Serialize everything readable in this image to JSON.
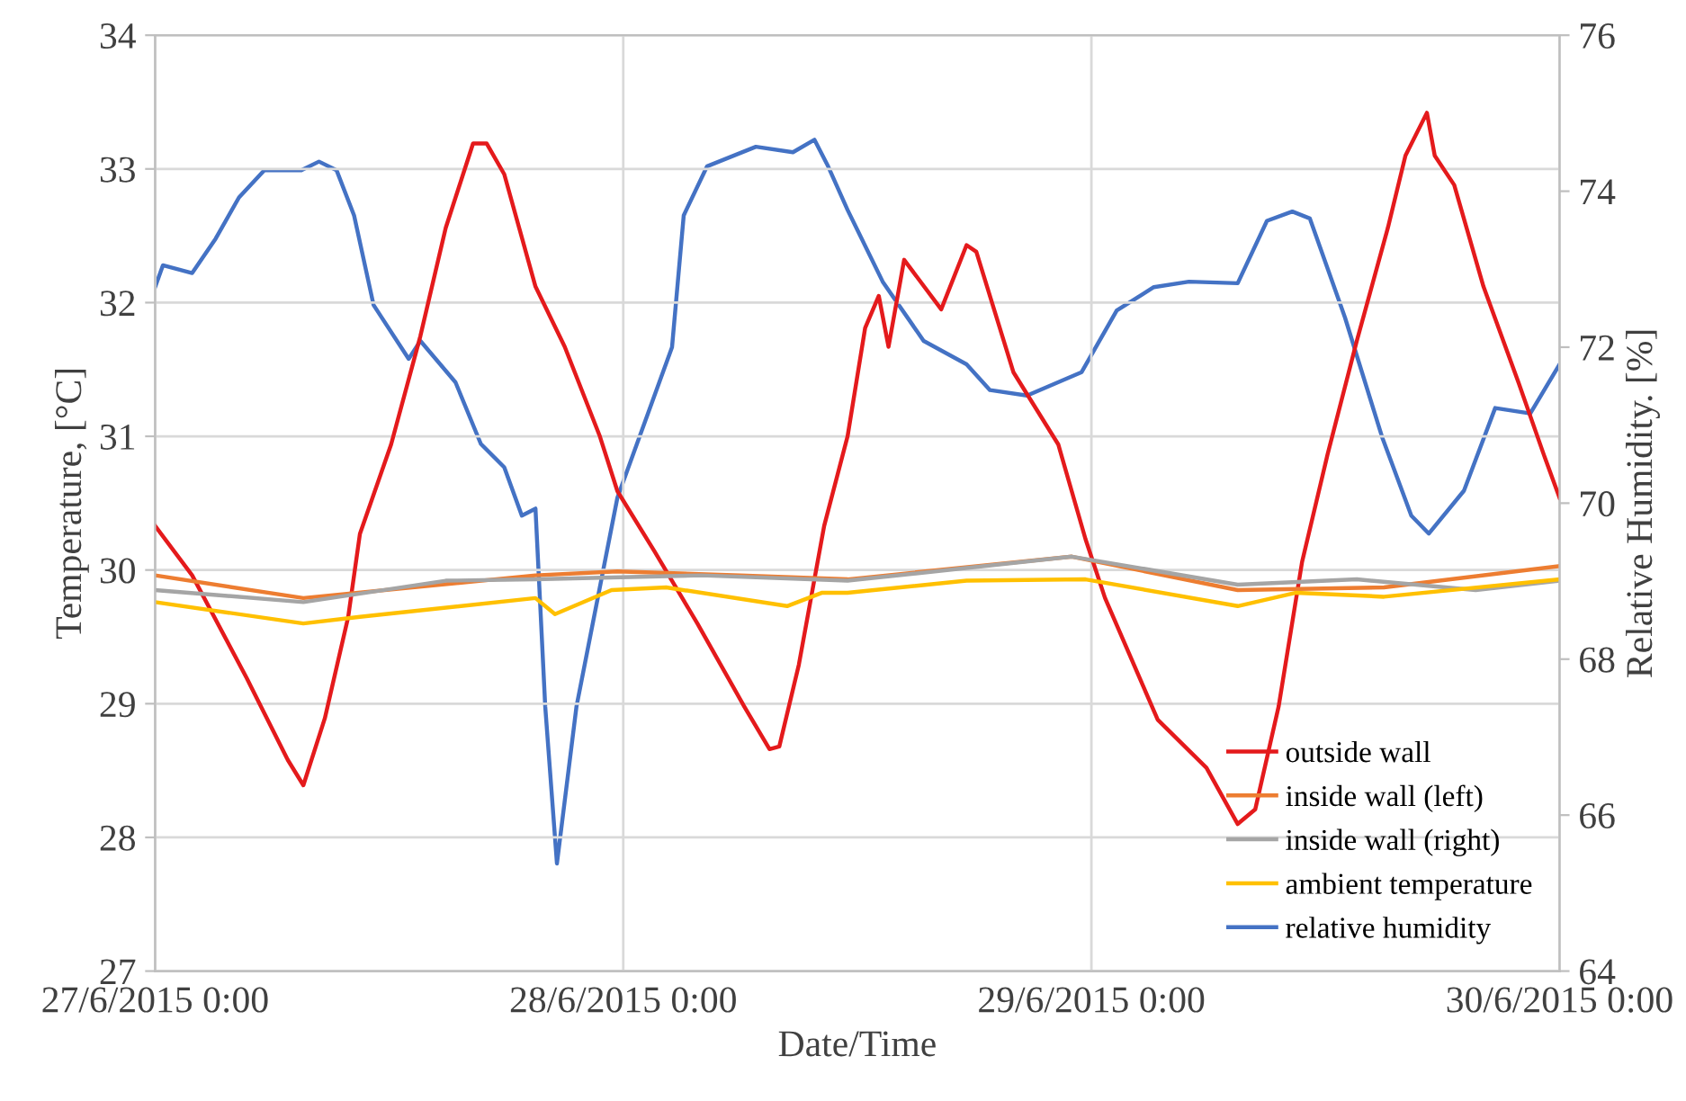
{
  "chart_data": {
    "type": "line",
    "xlabel": "Date/Time",
    "ylabel": "Temperature, [°C]",
    "y2label": "Relative Humidity. [%]",
    "xlim": [
      "2015-06-27T00:00",
      "2015-06-30T00:00"
    ],
    "xticks": [
      {
        "value": "2015-06-27T00:00",
        "label": "27/6/2015 0:00"
      },
      {
        "value": "2015-06-28T00:00",
        "label": "28/6/2015 0:00"
      },
      {
        "value": "2015-06-29T00:00",
        "label": "29/6/2015 0:00"
      },
      {
        "value": "2015-06-30T00:00",
        "label": "30/6/2015 0:00"
      }
    ],
    "ylim": [
      27,
      34
    ],
    "yticks": [
      27,
      28,
      29,
      30,
      31,
      32,
      33,
      34
    ],
    "y2lim": [
      64,
      76
    ],
    "y2ticks": [
      64,
      66,
      68,
      70,
      72,
      74,
      76
    ],
    "grid": true,
    "legend": "bottom right",
    "marker": "none",
    "line_style": "solid",
    "series": [
      {
        "name": "outside wall",
        "color": "#e41a1c",
        "x": [
          "2015-06-27T00:00",
          "2015-06-27T01:54",
          "2015-06-27T04:42",
          "2015-06-27T06:48",
          "2015-06-27T07:36",
          "2015-06-27T08:42",
          "2015-06-27T09:54",
          "2015-06-27T10:30",
          "2015-06-27T12:06",
          "2015-06-27T13:36",
          "2015-06-27T14:54",
          "2015-06-27T16:18",
          "2015-06-27T17:00",
          "2015-06-27T17:54",
          "2015-06-27T19:30",
          "2015-06-27T21:00",
          "2015-06-27T22:48",
          "2015-06-27T23:42",
          "2015-06-28T01:36",
          "2015-06-28T03:48",
          "2015-06-28T06:12",
          "2015-06-28T07:30",
          "2015-06-28T08:00",
          "2015-06-28T09:00",
          "2015-06-28T10:18",
          "2015-06-28T11:30",
          "2015-06-28T12:24",
          "2015-06-28T13:06",
          "2015-06-28T13:36",
          "2015-06-28T14:24",
          "2015-06-28T16:18",
          "2015-06-28T17:36",
          "2015-06-28T18:06",
          "2015-06-28T20:00",
          "2015-06-28T22:18",
          "2015-06-28T23:42",
          "2015-06-29T00:42",
          "2015-06-29T03:24",
          "2015-06-29T05:54",
          "2015-06-29T07:30",
          "2015-06-29T08:24",
          "2015-06-29T09:36",
          "2015-06-29T10:48",
          "2015-06-29T12:06",
          "2015-06-29T13:36",
          "2015-06-29T15:12",
          "2015-06-29T16:06",
          "2015-06-29T17:12",
          "2015-06-29T17:36",
          "2015-06-29T18:36",
          "2015-06-29T20:06",
          "2015-06-29T21:54",
          "2015-06-29T23:12",
          "2015-06-30T00:00"
        ],
        "values": [
          30.33,
          29.96,
          29.19,
          28.58,
          28.39,
          28.89,
          29.65,
          30.27,
          30.94,
          31.75,
          32.56,
          33.19,
          33.19,
          32.96,
          32.12,
          31.67,
          31.0,
          30.59,
          30.14,
          29.6,
          28.98,
          28.66,
          28.68,
          29.29,
          30.33,
          31.0,
          31.81,
          32.05,
          31.67,
          32.32,
          31.95,
          32.43,
          32.38,
          31.48,
          30.94,
          30.23,
          29.79,
          28.88,
          28.52,
          28.1,
          28.21,
          28.98,
          30.06,
          30.86,
          31.71,
          32.56,
          33.1,
          33.42,
          33.1,
          32.88,
          32.12,
          31.4,
          30.86,
          30.54
        ]
      },
      {
        "name": "inside wall (left)",
        "color": "#ed7d31",
        "x": [
          "2015-06-27T00:00",
          "2015-06-27T07:36",
          "2015-06-27T19:30",
          "2015-06-27T23:42",
          "2015-06-28T06:00",
          "2015-06-28T11:30",
          "2015-06-28T23:00",
          "2015-06-29T07:30",
          "2015-06-29T15:00",
          "2015-06-30T00:00"
        ],
        "values": [
          29.96,
          29.79,
          29.96,
          29.99,
          29.96,
          29.93,
          30.1,
          29.85,
          29.87,
          30.03
        ]
      },
      {
        "name": "inside wall (right)",
        "color": "#a5a5a5",
        "x": [
          "2015-06-27T00:00",
          "2015-06-27T07:36",
          "2015-06-27T14:54",
          "2015-06-27T19:30",
          "2015-06-28T04:00",
          "2015-06-28T11:30",
          "2015-06-28T23:00",
          "2015-06-29T07:30",
          "2015-06-29T13:36",
          "2015-06-29T19:42",
          "2015-06-30T00:00"
        ],
        "values": [
          29.85,
          29.76,
          29.92,
          29.93,
          29.96,
          29.92,
          30.1,
          29.89,
          29.93,
          29.85,
          29.92
        ]
      },
      {
        "name": "ambient temperature",
        "color": "#ffc000",
        "x": [
          "2015-06-27T00:00",
          "2015-06-27T07:36",
          "2015-06-27T10:30",
          "2015-06-27T19:30",
          "2015-06-27T20:30",
          "2015-06-27T23:24",
          "2015-06-28T02:12",
          "2015-06-28T08:24",
          "2015-06-28T10:12",
          "2015-06-28T11:30",
          "2015-06-28T17:36",
          "2015-06-28T23:42",
          "2015-06-29T07:30",
          "2015-06-29T10:30",
          "2015-06-29T15:00",
          "2015-06-30T00:00"
        ],
        "values": [
          29.76,
          29.6,
          29.65,
          29.79,
          29.67,
          29.85,
          29.87,
          29.73,
          29.83,
          29.83,
          29.92,
          29.93,
          29.73,
          29.83,
          29.8,
          29.93
        ]
      },
      {
        "name": "relative humidity",
        "color": "#4472c4",
        "axis": "y2",
        "x": [
          "2015-06-27T00:00",
          "2015-06-27T00:24",
          "2015-06-27T01:54",
          "2015-06-27T03:06",
          "2015-06-27T04:18",
          "2015-06-27T05:36",
          "2015-06-27T07:30",
          "2015-06-27T08:24",
          "2015-06-27T09:18",
          "2015-06-27T10:12",
          "2015-06-27T11:12",
          "2015-06-27T13:00",
          "2015-06-27T13:36",
          "2015-06-27T15:24",
          "2015-06-27T16:42",
          "2015-06-27T17:54",
          "2015-06-27T18:48",
          "2015-06-27T19:30",
          "2015-06-27T20:00",
          "2015-06-27T20:36",
          "2015-06-27T21:36",
          "2015-06-27T23:42",
          "2015-06-28T01:36",
          "2015-06-28T02:30",
          "2015-06-28T03:06",
          "2015-06-28T04:18",
          "2015-06-28T06:48",
          "2015-06-28T08:42",
          "2015-06-28T09:48",
          "2015-06-28T10:30",
          "2015-06-28T11:30",
          "2015-06-28T13:18",
          "2015-06-28T15:24",
          "2015-06-28T17:36",
          "2015-06-28T18:48",
          "2015-06-28T20:42",
          "2015-06-28T23:30",
          "2015-06-29T01:18",
          "2015-06-29T03:12",
          "2015-06-29T05:00",
          "2015-06-29T07:30",
          "2015-06-29T09:00",
          "2015-06-29T10:18",
          "2015-06-29T11:12",
          "2015-06-29T13:00",
          "2015-06-29T14:54",
          "2015-06-29T16:24",
          "2015-06-29T17:18",
          "2015-06-29T19:06",
          "2015-06-29T20:42",
          "2015-06-29T22:30",
          "2015-06-30T00:00"
        ],
        "values": [
          72.77,
          73.05,
          72.95,
          73.39,
          73.92,
          74.27,
          74.27,
          74.38,
          74.27,
          73.69,
          72.54,
          71.85,
          72.08,
          71.55,
          70.76,
          70.46,
          69.84,
          69.93,
          67.39,
          65.38,
          67.39,
          70.07,
          71.38,
          72.0,
          73.69,
          74.32,
          74.57,
          74.5,
          74.66,
          74.32,
          73.76,
          72.84,
          72.08,
          71.78,
          71.45,
          71.38,
          71.68,
          72.47,
          72.77,
          72.84,
          72.82,
          73.62,
          73.74,
          73.65,
          72.38,
          70.85,
          69.84,
          69.61,
          70.16,
          71.22,
          71.15,
          71.78
        ]
      }
    ]
  }
}
